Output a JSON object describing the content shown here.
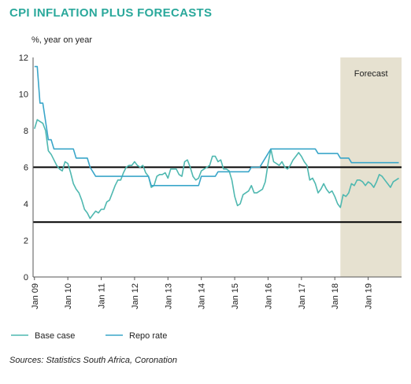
{
  "colors": {
    "title": "#2aa89b",
    "cpi": "#4fb8b0",
    "repo": "#3aa6c9",
    "forecast_shade": "#e6e1d0",
    "band": "#000000"
  },
  "chart_data": {
    "type": "line",
    "title": "CPI INFLATION PLUS FORECASTS",
    "ylabel": "%, year on year",
    "ylim": [
      0,
      12
    ],
    "yticks": [
      0,
      2,
      4,
      6,
      8,
      10,
      12
    ],
    "xlim": [
      "2009-01",
      "2019-12"
    ],
    "xticks": [
      "Jan 09",
      "Jan 10",
      "Jan 11",
      "Jan 12",
      "Jan 13",
      "Jan 14",
      "Jan 15",
      "Jan 16",
      "Jan 17",
      "Jan 18",
      "Jan 19"
    ],
    "forecast_label": "Forecast",
    "forecast_start": "2018-03",
    "target_band": [
      3,
      6
    ],
    "legend": "bottom-left",
    "source": "Sources: Statistics South Africa, Coronation",
    "series": [
      {
        "name": "Base case",
        "points": [
          [
            "2009-01",
            8.1
          ],
          [
            "2009-02",
            8.6
          ],
          [
            "2009-03",
            8.5
          ],
          [
            "2009-04",
            8.4
          ],
          [
            "2009-05",
            8.0
          ],
          [
            "2009-06",
            6.9
          ],
          [
            "2009-07",
            6.7
          ],
          [
            "2009-08",
            6.4
          ],
          [
            "2009-09",
            6.1
          ],
          [
            "2009-10",
            5.9
          ],
          [
            "2009-11",
            5.8
          ],
          [
            "2009-12",
            6.3
          ],
          [
            "2010-01",
            6.2
          ],
          [
            "2010-02",
            5.7
          ],
          [
            "2010-03",
            5.1
          ],
          [
            "2010-04",
            4.8
          ],
          [
            "2010-05",
            4.6
          ],
          [
            "2010-06",
            4.2
          ],
          [
            "2010-07",
            3.7
          ],
          [
            "2010-08",
            3.5
          ],
          [
            "2010-09",
            3.2
          ],
          [
            "2010-10",
            3.4
          ],
          [
            "2010-11",
            3.6
          ],
          [
            "2010-12",
            3.5
          ],
          [
            "2011-01",
            3.7
          ],
          [
            "2011-02",
            3.7
          ],
          [
            "2011-03",
            4.1
          ],
          [
            "2011-04",
            4.2
          ],
          [
            "2011-05",
            4.6
          ],
          [
            "2011-06",
            5.0
          ],
          [
            "2011-07",
            5.3
          ],
          [
            "2011-08",
            5.3
          ],
          [
            "2011-09",
            5.7
          ],
          [
            "2011-10",
            6.0
          ],
          [
            "2011-11",
            6.1
          ],
          [
            "2011-12",
            6.1
          ],
          [
            "2012-01",
            6.3
          ],
          [
            "2012-02",
            6.1
          ],
          [
            "2012-03",
            6.0
          ],
          [
            "2012-04",
            6.1
          ],
          [
            "2012-05",
            5.7
          ],
          [
            "2012-06",
            5.5
          ],
          [
            "2012-07",
            4.9
          ],
          [
            "2012-08",
            5.0
          ],
          [
            "2012-09",
            5.5
          ],
          [
            "2012-10",
            5.6
          ],
          [
            "2012-11",
            5.6
          ],
          [
            "2012-12",
            5.7
          ],
          [
            "2013-01",
            5.4
          ],
          [
            "2013-02",
            5.9
          ],
          [
            "2013-03",
            5.9
          ],
          [
            "2013-04",
            5.9
          ],
          [
            "2013-05",
            5.6
          ],
          [
            "2013-06",
            5.5
          ],
          [
            "2013-07",
            6.3
          ],
          [
            "2013-08",
            6.4
          ],
          [
            "2013-09",
            6.0
          ],
          [
            "2013-10",
            5.5
          ],
          [
            "2013-11",
            5.3
          ],
          [
            "2013-12",
            5.4
          ],
          [
            "2014-01",
            5.8
          ],
          [
            "2014-02",
            5.9
          ],
          [
            "2014-03",
            6.0
          ],
          [
            "2014-04",
            6.1
          ],
          [
            "2014-05",
            6.6
          ],
          [
            "2014-06",
            6.6
          ],
          [
            "2014-07",
            6.3
          ],
          [
            "2014-08",
            6.4
          ],
          [
            "2014-09",
            5.9
          ],
          [
            "2014-10",
            5.9
          ],
          [
            "2014-11",
            5.8
          ],
          [
            "2014-12",
            5.3
          ],
          [
            "2015-01",
            4.4
          ],
          [
            "2015-02",
            3.9
          ],
          [
            "2015-03",
            4.0
          ],
          [
            "2015-04",
            4.5
          ],
          [
            "2015-05",
            4.6
          ],
          [
            "2015-06",
            4.7
          ],
          [
            "2015-07",
            5.0
          ],
          [
            "2015-08",
            4.6
          ],
          [
            "2015-09",
            4.6
          ],
          [
            "2015-10",
            4.7
          ],
          [
            "2015-11",
            4.8
          ],
          [
            "2015-12",
            5.2
          ],
          [
            "2016-01",
            6.2
          ],
          [
            "2016-02",
            7.0
          ],
          [
            "2016-03",
            6.3
          ],
          [
            "2016-04",
            6.2
          ],
          [
            "2016-05",
            6.1
          ],
          [
            "2016-06",
            6.3
          ],
          [
            "2016-07",
            6.0
          ],
          [
            "2016-08",
            5.9
          ],
          [
            "2016-09",
            6.1
          ],
          [
            "2016-10",
            6.4
          ],
          [
            "2016-11",
            6.6
          ],
          [
            "2016-12",
            6.8
          ],
          [
            "2017-01",
            6.6
          ],
          [
            "2017-02",
            6.3
          ],
          [
            "2017-03",
            6.1
          ],
          [
            "2017-04",
            5.3
          ],
          [
            "2017-05",
            5.4
          ],
          [
            "2017-06",
            5.1
          ],
          [
            "2017-07",
            4.6
          ],
          [
            "2017-08",
            4.8
          ],
          [
            "2017-09",
            5.1
          ],
          [
            "2017-10",
            4.8
          ],
          [
            "2017-11",
            4.6
          ],
          [
            "2017-12",
            4.7
          ],
          [
            "2018-01",
            4.4
          ],
          [
            "2018-02",
            4.0
          ],
          [
            "2018-03",
            3.8
          ],
          [
            "2018-04",
            4.5
          ],
          [
            "2018-05",
            4.4
          ],
          [
            "2018-06",
            4.6
          ],
          [
            "2018-07",
            5.1
          ],
          [
            "2018-08",
            5.0
          ],
          [
            "2018-09",
            5.3
          ],
          [
            "2018-10",
            5.3
          ],
          [
            "2018-11",
            5.2
          ],
          [
            "2018-12",
            5.0
          ],
          [
            "2019-01",
            5.2
          ],
          [
            "2019-02",
            5.1
          ],
          [
            "2019-03",
            4.9
          ],
          [
            "2019-04",
            5.2
          ],
          [
            "2019-05",
            5.6
          ],
          [
            "2019-06",
            5.5
          ],
          [
            "2019-07",
            5.3
          ],
          [
            "2019-08",
            5.1
          ],
          [
            "2019-09",
            4.9
          ],
          [
            "2019-10",
            5.2
          ],
          [
            "2019-11",
            5.3
          ],
          [
            "2019-12",
            5.4
          ]
        ]
      },
      {
        "name": "Repo rate",
        "points": [
          [
            "2009-01",
            11.5
          ],
          [
            "2009-02",
            11.5
          ],
          [
            "2009-03",
            9.5
          ],
          [
            "2009-04",
            9.5
          ],
          [
            "2009-05",
            8.5
          ],
          [
            "2009-06",
            7.5
          ],
          [
            "2009-07",
            7.5
          ],
          [
            "2009-08",
            7.0
          ],
          [
            "2009-12",
            7.0
          ],
          [
            "2010-03",
            7.0
          ],
          [
            "2010-04",
            6.5
          ],
          [
            "2010-08",
            6.5
          ],
          [
            "2010-09",
            6.0
          ],
          [
            "2010-11",
            5.5
          ],
          [
            "2011-12",
            5.5
          ],
          [
            "2012-06",
            5.5
          ],
          [
            "2012-07",
            5.0
          ],
          [
            "2013-12",
            5.0
          ],
          [
            "2014-01",
            5.5
          ],
          [
            "2014-06",
            5.5
          ],
          [
            "2014-07",
            5.75
          ],
          [
            "2015-06",
            5.75
          ],
          [
            "2015-07",
            6.0
          ],
          [
            "2015-10",
            6.0
          ],
          [
            "2015-11",
            6.25
          ],
          [
            "2016-01",
            6.75
          ],
          [
            "2016-02",
            7.0
          ],
          [
            "2017-06",
            7.0
          ],
          [
            "2017-07",
            6.75
          ],
          [
            "2018-02",
            6.75
          ],
          [
            "2018-03",
            6.5
          ],
          [
            "2018-06",
            6.5
          ],
          [
            "2018-07",
            6.25
          ],
          [
            "2019-06",
            6.25
          ],
          [
            "2019-12",
            6.25
          ]
        ]
      }
    ]
  }
}
